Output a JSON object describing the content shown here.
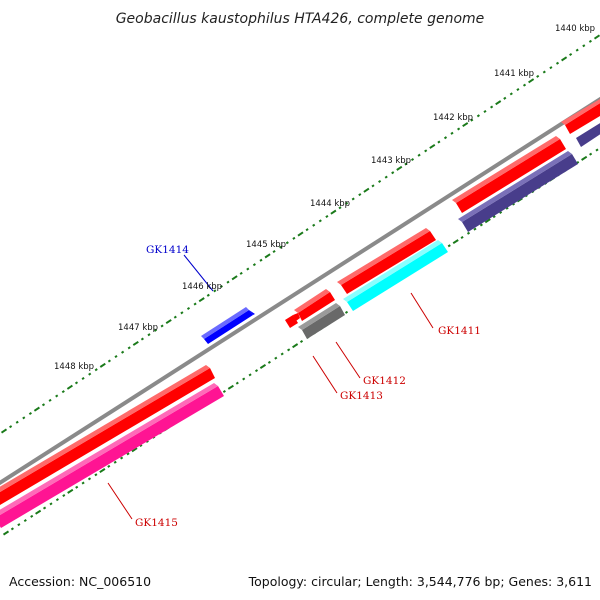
{
  "title": "Geobacillus kaustophilus HTA426, complete genome",
  "footer": {
    "accession": "Accession: NC_006510",
    "summary": "Topology: circular; Length: 3,544,776 bp; Genes: 3,611"
  },
  "ruler_labels": [
    "1440 kbp",
    "1441 kbp",
    "1442 kbp",
    "1443 kbp",
    "1444 kbp",
    "1445 kbp",
    "1446 kbp",
    "1447 kbp",
    "1448 kbp"
  ],
  "genes": [
    {
      "id": "GK1411",
      "label": "GK1411",
      "strand": "-",
      "color": "#ff0000",
      "label_color": "#cc0000"
    },
    {
      "id": "GK1412",
      "label": "GK1412",
      "strand": "-",
      "color": "#ff0000",
      "label_color": "#cc0000"
    },
    {
      "id": "GK1413",
      "label": "GK1413",
      "strand": "-",
      "color": "#ff0000",
      "label_color": "#cc0000"
    },
    {
      "id": "GK1414",
      "label": "GK1414",
      "strand": "+",
      "color": "#0000ff",
      "label_color": "#0000cc"
    },
    {
      "id": "GK1415",
      "label": "GK1415",
      "strand": "-",
      "color": "#ff0000",
      "label_color": "#cc0000"
    }
  ],
  "colors": {
    "backbone": "#8a8a8a",
    "tick": "#1a7a1a",
    "cds_red": "#ff0000",
    "cds_blue": "#0000ff",
    "cog_indigo": "#483d8b",
    "cog_cyan": "#00ffff",
    "cog_gray": "#696969",
    "cog_magenta": "#ff1493"
  }
}
